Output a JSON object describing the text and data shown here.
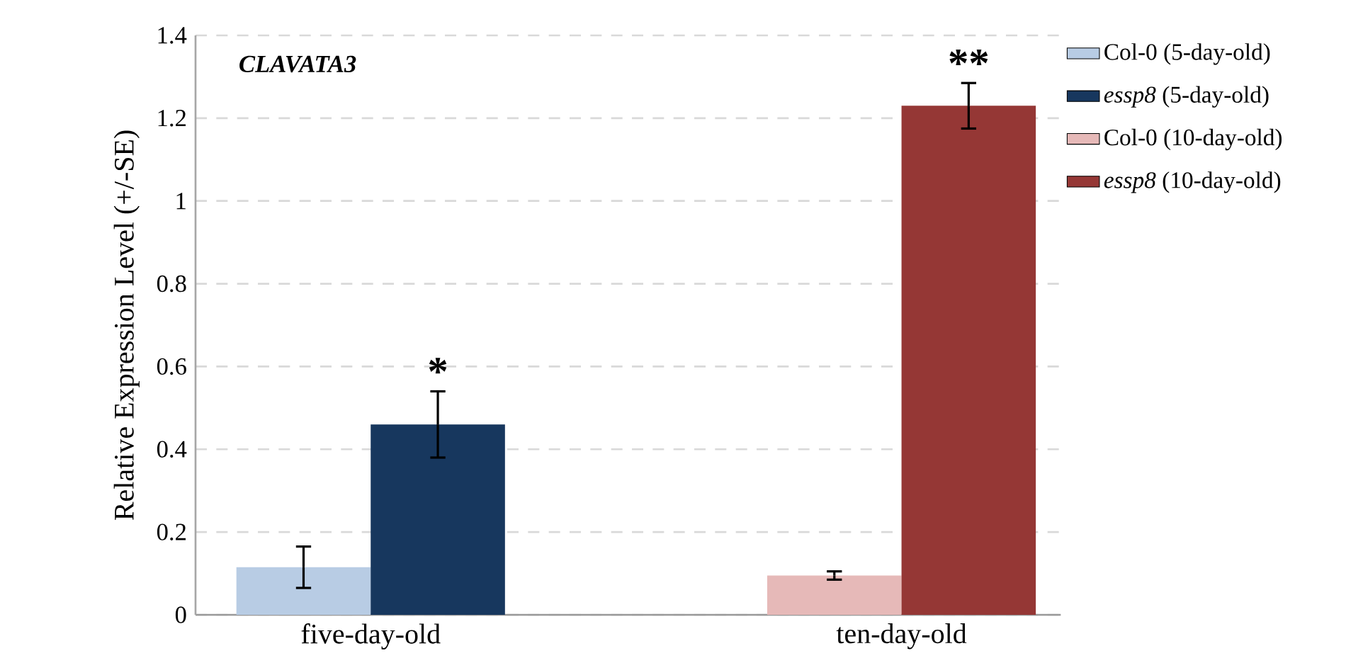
{
  "chart_data": {
    "type": "bar",
    "title": "CLAVATA3",
    "ylabel": "Relative Expression Level (+/-SE)",
    "categories": [
      "five-day-old",
      "ten-day-old"
    ],
    "series": [
      {
        "name": "Col-0 (5-day-old)",
        "color": "#b8cce4",
        "values": [
          0.115,
          null
        ],
        "errors": [
          0.05,
          null
        ]
      },
      {
        "name": "*essp8* (5-day-old)",
        "color": "#17375e",
        "values": [
          0.46,
          null
        ],
        "errors": [
          0.08,
          null
        ]
      },
      {
        "name": "Col-0 (10-day-old)",
        "color": "#e6b9b8",
        "values": [
          null,
          0.095
        ],
        "errors": [
          null,
          0.01
        ]
      },
      {
        "name": "*essp8* (10-day-old)",
        "color": "#953735",
        "values": [
          null,
          1.23
        ],
        "errors": [
          null,
          0.055
        ]
      }
    ],
    "ylim": [
      0,
      1.4
    ],
    "yticks": [
      0,
      0.2,
      0.4,
      0.6,
      0.8,
      1,
      1.2,
      1.4
    ],
    "grid": "y",
    "legend": "right",
    "annotations": [
      "*",
      "**"
    ]
  }
}
